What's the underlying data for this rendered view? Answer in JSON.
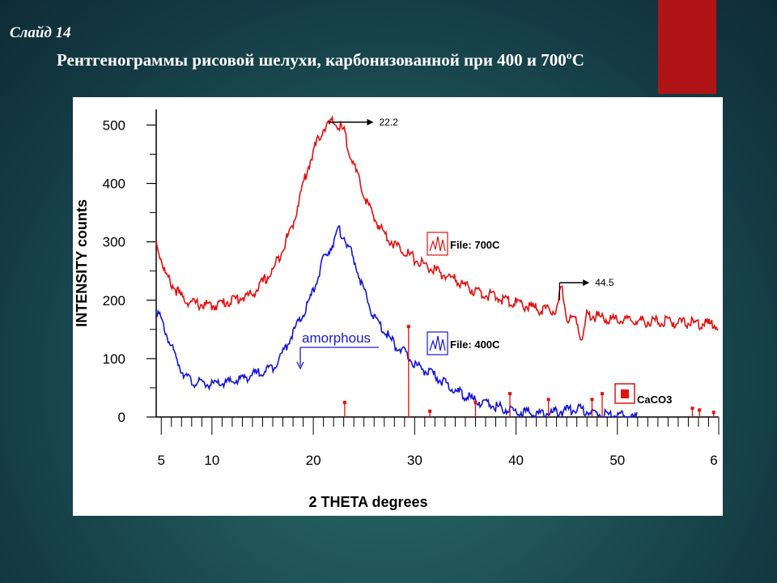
{
  "slide": {
    "number_label": "Слайд 14",
    "title": "Рентгенограммы рисовой шелухи, карбонизованной при 400 и 700ºС"
  },
  "colors": {
    "accent_bar": "#b01416",
    "series_700": "#e31010",
    "series_400": "#1414d8",
    "caco3": "#e31010"
  },
  "chart_data": {
    "type": "line",
    "xlabel": "2 THETA  degrees",
    "ylabel": "INTENSITY  counts",
    "xlim": [
      4.5,
      60
    ],
    "ylim": [
      0,
      520
    ],
    "x_ticks": [
      "5",
      "10",
      "20",
      "30",
      "40",
      "50",
      "6"
    ],
    "y_ticks": [
      "500",
      "400",
      "300",
      "200",
      "100",
      "0"
    ],
    "series": [
      {
        "name": "File: 700C",
        "color": "#e31010",
        "points": [
          [
            4.5,
            300
          ],
          [
            5.5,
            240
          ],
          [
            7,
            205
          ],
          [
            8,
            195
          ],
          [
            10,
            190
          ],
          [
            12,
            200
          ],
          [
            14,
            210
          ],
          [
            16,
            250
          ],
          [
            18,
            330
          ],
          [
            19,
            400
          ],
          [
            20,
            455
          ],
          [
            21,
            495
          ],
          [
            22,
            505
          ],
          [
            23,
            490
          ],
          [
            24,
            430
          ],
          [
            25,
            380
          ],
          [
            26,
            340
          ],
          [
            27,
            315
          ],
          [
            28,
            295
          ],
          [
            29,
            285
          ],
          [
            30,
            270
          ],
          [
            32,
            250
          ],
          [
            34,
            235
          ],
          [
            36,
            215
          ],
          [
            38,
            205
          ],
          [
            40,
            195
          ],
          [
            42,
            185
          ],
          [
            44,
            180
          ],
          [
            44.5,
            225
          ],
          [
            45,
            170
          ],
          [
            46,
            168
          ],
          [
            46.5,
            130
          ],
          [
            47,
            175
          ],
          [
            48,
            172
          ],
          [
            50,
            165
          ],
          [
            55,
            163
          ],
          [
            60,
            158
          ]
        ]
      },
      {
        "name": "File: 400C",
        "color": "#1414d8",
        "points": [
          [
            4.5,
            185
          ],
          [
            5,
            165
          ],
          [
            6,
            120
          ],
          [
            7,
            80
          ],
          [
            8,
            60
          ],
          [
            10,
            55
          ],
          [
            12,
            60
          ],
          [
            14,
            72
          ],
          [
            16,
            85
          ],
          [
            17,
            110
          ],
          [
            18,
            145
          ],
          [
            19,
            175
          ],
          [
            20,
            215
          ],
          [
            21,
            270
          ],
          [
            22,
            300
          ],
          [
            22.5,
            320
          ],
          [
            23,
            310
          ],
          [
            24,
            270
          ],
          [
            25,
            215
          ],
          [
            26,
            170
          ],
          [
            27,
            148
          ],
          [
            28,
            125
          ],
          [
            29,
            110
          ],
          [
            30,
            90
          ],
          [
            32,
            70
          ],
          [
            34,
            45
          ],
          [
            36,
            28
          ],
          [
            38,
            18
          ],
          [
            40,
            10
          ],
          [
            42,
            5
          ],
          [
            44,
            8
          ],
          [
            46,
            15
          ],
          [
            48,
            5
          ],
          [
            50,
            2
          ],
          [
            52,
            0
          ]
        ]
      }
    ],
    "reference_peaks": {
      "name": "CaCO3",
      "color": "#e31010",
      "peaks": [
        [
          23.1,
          25
        ],
        [
          29.4,
          155
        ],
        [
          31.5,
          10
        ],
        [
          36,
          25
        ],
        [
          39.4,
          40
        ],
        [
          43.2,
          30
        ],
        [
          47.5,
          30
        ],
        [
          48.5,
          40
        ],
        [
          57.4,
          15
        ],
        [
          58.1,
          12
        ],
        [
          59.5,
          8
        ]
      ]
    },
    "annotations": [
      {
        "text": "22.2",
        "x": 22.2,
        "y": 505
      },
      {
        "text": "44.5",
        "x": 44.5,
        "y": 230
      },
      {
        "text": "amorphous",
        "x": 20.5,
        "y": 130
      }
    ],
    "legend": [
      {
        "label": "File: 700C"
      },
      {
        "label": "File: 400C"
      },
      {
        "label": "CaCO3"
      }
    ]
  }
}
